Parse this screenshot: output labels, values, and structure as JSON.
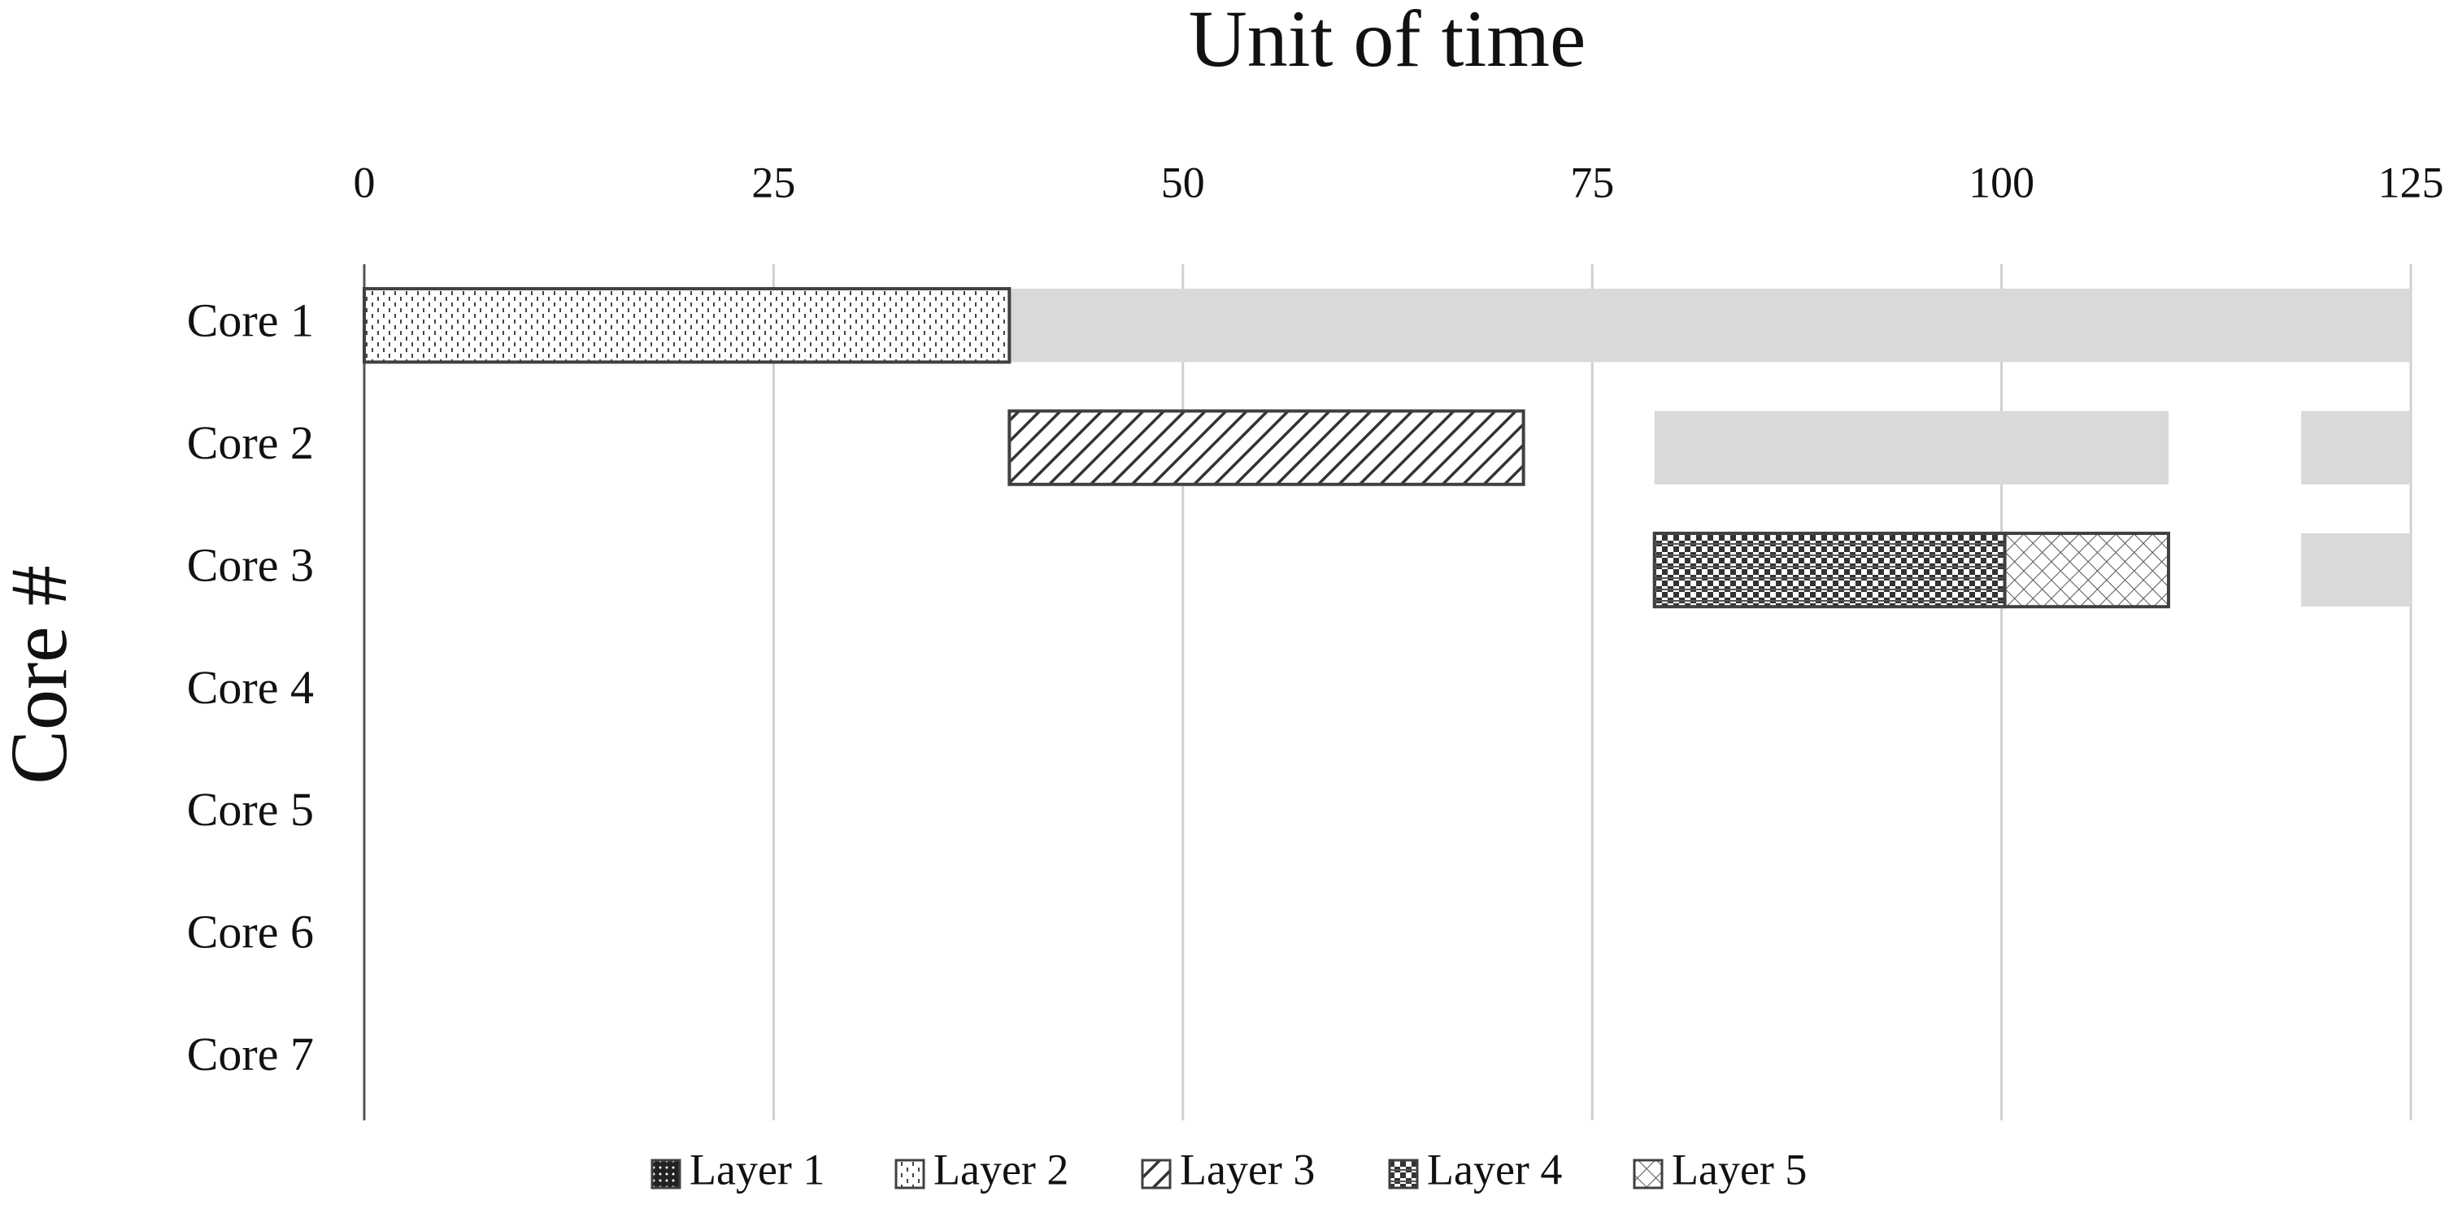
{
  "chart_data": {
    "type": "gantt",
    "xlabel": "Unit of time",
    "ylabel": "Core #",
    "categories": [
      "Core 1",
      "Core 2",
      "Core 3",
      "Core 4",
      "Core 5",
      "Core 6",
      "Core 7"
    ],
    "xlim": [
      0,
      125
    ],
    "xticks": [
      0,
      25,
      50,
      75,
      100,
      125
    ],
    "grid": true,
    "series": [
      {
        "name": "Layer 1",
        "color": "#404040",
        "pattern": "dense-dots",
        "start": [
          null,
          null,
          null,
          null,
          null,
          null,
          null
        ],
        "end": [
          null,
          null,
          null,
          null,
          null,
          null,
          null
        ]
      },
      {
        "name": "Layer 2",
        "color": "#404040",
        "pattern": "dashes",
        "start": [
          0,
          null,
          null,
          null,
          null,
          null,
          null
        ],
        "end": [
          39.4,
          null,
          null,
          null,
          null,
          null,
          null
        ]
      },
      {
        "name": "Layer 3",
        "color": "#404040",
        "pattern": "diagonal",
        "start": [
          null,
          39.4,
          null,
          null,
          null,
          null,
          null
        ],
        "end": [
          null,
          70.8,
          null,
          null,
          null,
          null,
          null
        ]
      },
      {
        "name": "Layer 4",
        "color": "#404040",
        "pattern": "checker",
        "start": [
          null,
          null,
          78.8,
          null,
          null,
          null,
          null
        ],
        "end": [
          null,
          null,
          100.2,
          null,
          null,
          null,
          null
        ]
      },
      {
        "name": "Layer 5",
        "color": "#404040",
        "pattern": "crosshatch",
        "start": [
          null,
          null,
          100.2,
          null,
          null,
          null,
          null
        ],
        "end": [
          null,
          null,
          110.2,
          null,
          null,
          null,
          null
        ]
      },
      {
        "color": "#d9d9d9",
        "start": [
          39.4,
          78.8,
          118.3,
          null,
          null,
          null,
          null
        ],
        "end": [
          125,
          110.2,
          125,
          null,
          null,
          null,
          null
        ]
      },
      {
        "color": "#d9d9d9",
        "start": [
          null,
          118.3,
          null,
          null,
          null,
          null,
          null
        ],
        "end": [
          null,
          125,
          null,
          null,
          null,
          null,
          null
        ]
      }
    ],
    "legend": "bottom"
  }
}
